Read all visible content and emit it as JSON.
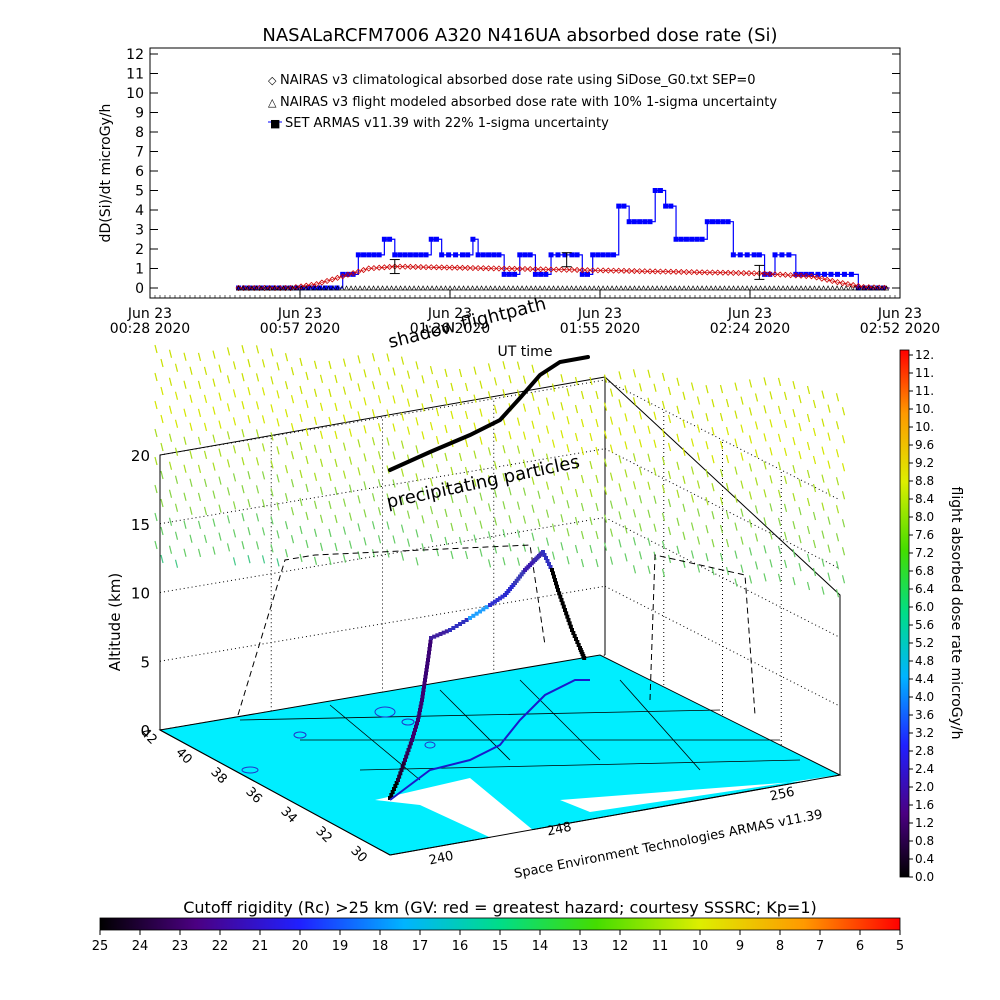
{
  "top_chart": {
    "title": "NASALaRCFM7006   A320 N416UA absorbed dose rate (Si)",
    "ylabel": "dD(Si)/dt microGy/h",
    "xlabel": "UT time",
    "ylim": [
      0,
      12
    ],
    "yticks": [
      "0",
      "1",
      "2",
      "3",
      "4",
      "5",
      "6",
      "7",
      "8",
      "9",
      "10",
      "11",
      "12"
    ],
    "xticks": [
      {
        "line1": "Jun 23",
        "line2": "00:28 2020"
      },
      {
        "line1": "Jun 23",
        "line2": "00:57 2020"
      },
      {
        "line1": "Jun 23",
        "line2": "01:26 2020"
      },
      {
        "line1": "Jun 23",
        "line2": "01:55 2020"
      },
      {
        "line1": "Jun 23",
        "line2": "02:24 2020"
      },
      {
        "line1": "Jun 23",
        "line2": "02:52 2020"
      }
    ],
    "legend": [
      {
        "symbol": "◇",
        "color": "#cc0000",
        "text": "NAIRAS v3 climatological absorbed dose rate using SiDose_G0.txt SEP=0"
      },
      {
        "symbol": "△",
        "color": "#000000",
        "text": "NAIRAS v3 flight modeled absorbed dose rate with 10% 1-sigma uncertainty"
      },
      {
        "symbol": "■",
        "color": "#0000ff",
        "text": "SET ARMAS v11.39 with 22% 1-sigma uncertainty"
      }
    ]
  },
  "chart_data": [
    {
      "type": "line",
      "title": "NASALaRCFM7006   A320 N416UA absorbed dose rate (Si)",
      "xlabel": "UT time",
      "ylabel": "dD(Si)/dt microGy/h",
      "x_range": [
        "00:28",
        "02:52"
      ],
      "ylim": [
        0,
        12
      ],
      "series": [
        {
          "name": "SET ARMAS v11.39 with 22% 1-sigma uncertainty",
          "color": "#0000ff",
          "x": [
            "00:45",
            "00:55",
            "01:05",
            "01:08",
            "01:10",
            "01:12",
            "01:13",
            "01:15",
            "01:16",
            "01:18",
            "01:21",
            "01:22",
            "01:24",
            "01:28",
            "01:30",
            "01:31",
            "01:33",
            "01:34",
            "01:36",
            "01:37",
            "01:39",
            "01:40",
            "01:42",
            "01:45",
            "01:49",
            "01:51",
            "01:53",
            "01:55",
            "01:58",
            "02:00",
            "02:01",
            "02:04",
            "02:05",
            "02:07",
            "02:09",
            "02:12",
            "02:15",
            "02:17",
            "02:20",
            "02:24",
            "02:26",
            "02:28",
            "02:32",
            "02:35",
            "02:40",
            "02:44",
            "02:50"
          ],
          "y": [
            0,
            0,
            0.7,
            1.7,
            1.7,
            1.7,
            2.5,
            1.7,
            1.7,
            1.7,
            1.7,
            2.5,
            1.7,
            1.7,
            2.5,
            1.7,
            1.7,
            1.7,
            0.7,
            0.7,
            1.7,
            1.7,
            0.7,
            1.7,
            1.7,
            0.7,
            1.7,
            1.7,
            4.2,
            3.4,
            3.4,
            3.4,
            5.0,
            4.2,
            2.5,
            2.5,
            3.4,
            3.4,
            1.7,
            1.7,
            0.7,
            1.7,
            0.7,
            0.7,
            0.7,
            0,
            0
          ]
        },
        {
          "name": "NAIRAS v3 climatological absorbed dose rate using SiDose_G0.txt SEP=0",
          "color": "#cc0000",
          "x": [
            "00:45",
            "00:55",
            "01:00",
            "01:05",
            "01:10",
            "01:15",
            "01:25",
            "01:35",
            "01:45",
            "01:55",
            "02:05",
            "02:15",
            "02:25",
            "02:35",
            "02:40",
            "02:45",
            "02:50"
          ],
          "y": [
            0,
            0,
            0.2,
            0.6,
            1.0,
            1.1,
            1.05,
            1.0,
            0.95,
            0.9,
            0.85,
            0.8,
            0.75,
            0.6,
            0.3,
            0.05,
            0
          ]
        },
        {
          "name": "NAIRAS v3 flight modeled absorbed dose rate with 10% 1-sigma uncertainty",
          "color": "#000000",
          "x": [
            "01:15",
            "01:48",
            "02:25"
          ],
          "y": [
            1.1,
            1.45,
            0.8
          ]
        }
      ]
    }
  ],
  "scene3d": {
    "ylabel": "Altitude (km)",
    "zticks": [
      "0",
      "5",
      "10",
      "15",
      "20"
    ],
    "lat_ticks": [
      "42",
      "40",
      "38",
      "36",
      "34",
      "32",
      "30"
    ],
    "lon_ticks": [
      "240",
      "248",
      "256"
    ],
    "label_shadow": "shadow flightpath",
    "label_precip": "precipitating particles",
    "credit": "Space Environment Technologies ARMAS v11.39"
  },
  "colorbar_v": {
    "label": "flight absorbed dose rate microGy/h",
    "ticks": [
      "12.",
      "11.",
      "11.",
      "10.",
      "10.",
      "9.6",
      "9.2",
      "8.8",
      "8.4",
      "8.0",
      "7.6",
      "7.2",
      "6.8",
      "6.4",
      "6.0",
      "5.6",
      "5.2",
      "4.8",
      "4.4",
      "4.0",
      "3.6",
      "3.2",
      "2.8",
      "2.4",
      "2.0",
      "1.6",
      "1.2",
      "0.8",
      "0.4",
      "0.0"
    ]
  },
  "colorbar_h": {
    "title": "Cutoff rigidity (Rc) >25 km (GV: red = greatest hazard; courtesy SSSRC; Kp=1)",
    "ticks": [
      "25",
      "24",
      "23",
      "22",
      "21",
      "20",
      "19",
      "18",
      "17",
      "16",
      "15",
      "14",
      "13",
      "12",
      "11",
      "10",
      "9",
      "8",
      "7",
      "6",
      "5"
    ]
  }
}
